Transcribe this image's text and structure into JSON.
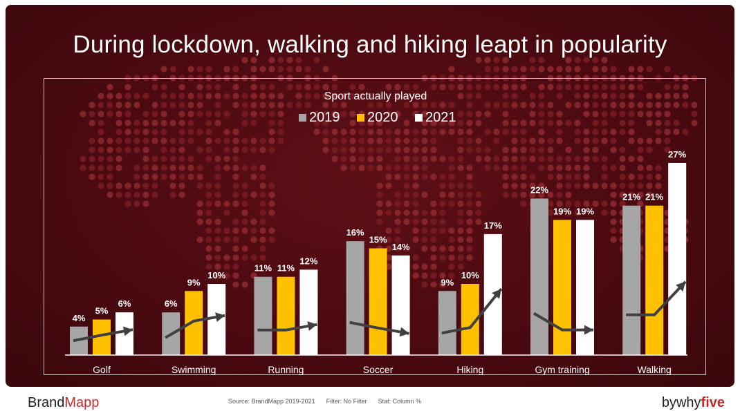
{
  "title": "During lockdown, walking and hiking leapt in popularity",
  "footer": {
    "brand_a": "Brand",
    "brand_b": "Mapp",
    "source": "Source: BrandMapp 2019-2021",
    "filter": "Filter: No Filter",
    "stat": "Stat: Column %",
    "by_a": "bywhy",
    "by_b": "five"
  },
  "colors": {
    "series_2019": "#a6a6a6",
    "series_2020": "#ffc000",
    "series_2021": "#ffffff",
    "arrow": "#404040",
    "background": "#4a0a10"
  },
  "chart_data": {
    "type": "bar",
    "title": "Sport actually played",
    "categories": [
      "Golf",
      "Swimming",
      "Running",
      "Soccer",
      "Hiking",
      "Gym training",
      "Walking"
    ],
    "series": [
      {
        "name": "2019",
        "values": [
          4,
          6,
          11,
          16,
          9,
          22,
          21
        ],
        "labels": [
          "4%",
          "6%",
          "11%",
          "16%",
          "9%",
          "22%",
          "21%"
        ]
      },
      {
        "name": "2020",
        "values": [
          5,
          9,
          11,
          15,
          10,
          19,
          21
        ],
        "labels": [
          "5%",
          "9%",
          "11%",
          "15%",
          "10%",
          "19%",
          "21%"
        ]
      },
      {
        "name": "2021",
        "values": [
          6,
          10,
          12,
          14,
          17,
          19,
          27
        ],
        "labels": [
          "6%",
          "10%",
          "12%",
          "14%",
          "17%",
          "19%",
          "27%"
        ]
      }
    ],
    "ylim": [
      0,
      30
    ],
    "legend": "top-center",
    "grid": false,
    "trend_arrows": true
  }
}
